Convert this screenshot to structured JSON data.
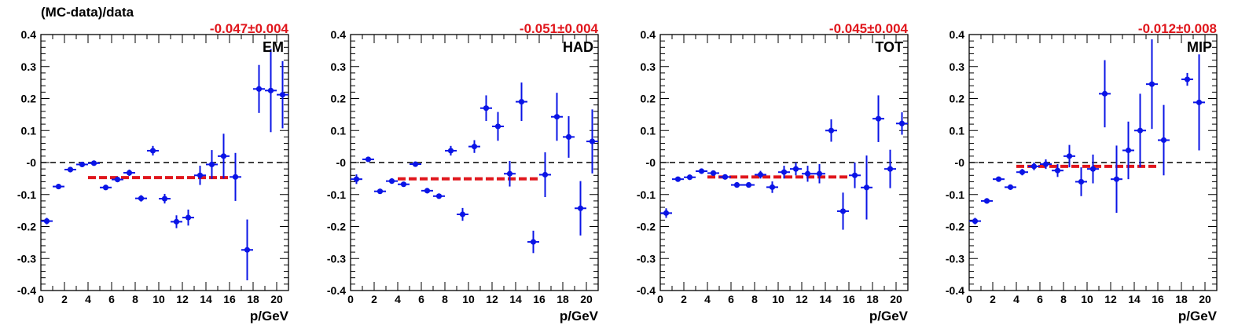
{
  "figure": {
    "ylabel": "(MC-data)/data"
  },
  "colors": {
    "points": "#0a14e6",
    "fit": "#e0161c",
    "fit_text": "#e0161c",
    "zero_line": "#000000"
  },
  "chart_data": [
    {
      "type": "scatter",
      "label": "EM",
      "fit_text": "-0.047±0.004",
      "fit": {
        "value": -0.047,
        "xrange": [
          4,
          16
        ]
      },
      "xlabel": "p/GeV",
      "ylabel": "(MC-data)/data",
      "xlim": [
        0,
        21
      ],
      "ylim": [
        -0.4,
        0.4
      ],
      "xticks": [
        "0",
        "2",
        "4",
        "6",
        "8",
        "10",
        "12",
        "14",
        "16",
        "18",
        "20"
      ],
      "yticks": [
        "-0.4",
        "-0.3",
        "-0.2",
        "-0.1",
        "-0",
        "0.1",
        "0.2",
        "0.3",
        "0.4"
      ],
      "points": [
        {
          "x": 0.5,
          "y": -0.183,
          "err": 0.01
        },
        {
          "x": 1.5,
          "y": -0.075,
          "err": 0.005
        },
        {
          "x": 2.5,
          "y": -0.022,
          "err": 0.005
        },
        {
          "x": 3.5,
          "y": -0.006,
          "err": 0.004
        },
        {
          "x": 4.5,
          "y": -0.002,
          "err": 0.004
        },
        {
          "x": 5.5,
          "y": -0.078,
          "err": 0.006
        },
        {
          "x": 6.5,
          "y": -0.053,
          "err": 0.006
        },
        {
          "x": 7.5,
          "y": -0.032,
          "err": 0.01
        },
        {
          "x": 8.5,
          "y": -0.112,
          "err": 0.01
        },
        {
          "x": 9.5,
          "y": 0.037,
          "err": 0.015
        },
        {
          "x": 10.5,
          "y": -0.113,
          "err": 0.015
        },
        {
          "x": 11.5,
          "y": -0.185,
          "err": 0.02
        },
        {
          "x": 12.5,
          "y": -0.172,
          "err": 0.025
        },
        {
          "x": 13.5,
          "y": -0.04,
          "err": 0.03
        },
        {
          "x": 14.5,
          "y": -0.006,
          "err": 0.045
        },
        {
          "x": 15.5,
          "y": 0.02,
          "err": 0.07
        },
        {
          "x": 16.5,
          "y": -0.045,
          "err": 0.075
        },
        {
          "x": 17.5,
          "y": -0.273,
          "err": 0.095
        },
        {
          "x": 18.5,
          "y": 0.23,
          "err": 0.075
        },
        {
          "x": 19.5,
          "y": 0.225,
          "err": 0.13
        },
        {
          "x": 20.5,
          "y": 0.212,
          "err": 0.105
        }
      ]
    },
    {
      "type": "scatter",
      "label": "HAD",
      "fit_text": "-0.051±0.004",
      "fit": {
        "value": -0.051,
        "xrange": [
          4,
          16
        ]
      },
      "xlabel": "p/GeV",
      "xlim": [
        0,
        21
      ],
      "ylim": [
        -0.4,
        0.4
      ],
      "xticks": [
        "0",
        "2",
        "4",
        "6",
        "8",
        "10",
        "12",
        "14",
        "16",
        "18",
        "20"
      ],
      "yticks": [
        "-0.4",
        "-0.3",
        "-0.2",
        "-0.1",
        "-0",
        "0.1",
        "0.2",
        "0.3",
        "0.4"
      ],
      "points": [
        {
          "x": 0.5,
          "y": -0.052,
          "err": 0.015
        },
        {
          "x": 1.5,
          "y": 0.01,
          "err": 0.006
        },
        {
          "x": 2.5,
          "y": -0.09,
          "err": 0.006
        },
        {
          "x": 3.5,
          "y": -0.058,
          "err": 0.005
        },
        {
          "x": 4.5,
          "y": -0.068,
          "err": 0.005
        },
        {
          "x": 5.5,
          "y": -0.005,
          "err": 0.004
        },
        {
          "x": 6.5,
          "y": -0.088,
          "err": 0.006
        },
        {
          "x": 7.5,
          "y": -0.105,
          "err": 0.008
        },
        {
          "x": 8.5,
          "y": 0.037,
          "err": 0.015
        },
        {
          "x": 9.5,
          "y": -0.162,
          "err": 0.02
        },
        {
          "x": 10.5,
          "y": 0.05,
          "err": 0.02
        },
        {
          "x": 11.5,
          "y": 0.17,
          "err": 0.04
        },
        {
          "x": 12.5,
          "y": 0.113,
          "err": 0.045
        },
        {
          "x": 13.5,
          "y": -0.035,
          "err": 0.04
        },
        {
          "x": 14.5,
          "y": 0.19,
          "err": 0.06
        },
        {
          "x": 15.5,
          "y": -0.248,
          "err": 0.035
        },
        {
          "x": 16.5,
          "y": -0.038,
          "err": 0.07
        },
        {
          "x": 17.5,
          "y": 0.143,
          "err": 0.075
        },
        {
          "x": 18.5,
          "y": 0.08,
          "err": 0.065
        },
        {
          "x": 19.5,
          "y": -0.143,
          "err": 0.085
        },
        {
          "x": 20.5,
          "y": 0.066,
          "err": 0.1
        }
      ]
    },
    {
      "type": "scatter",
      "label": "TOT",
      "fit_text": "-0.045±0.004",
      "fit": {
        "value": -0.045,
        "xrange": [
          4,
          16
        ]
      },
      "xlabel": "p/GeV",
      "xlim": [
        0,
        21
      ],
      "ylim": [
        -0.4,
        0.4
      ],
      "xticks": [
        "0",
        "2",
        "4",
        "6",
        "8",
        "10",
        "12",
        "14",
        "16",
        "18",
        "20"
      ],
      "yticks": [
        "-0.4",
        "-0.3",
        "-0.2",
        "-0.1",
        "-0",
        "0.1",
        "0.2",
        "0.3",
        "0.4"
      ],
      "points": [
        {
          "x": 0.5,
          "y": -0.158,
          "err": 0.015
        },
        {
          "x": 1.5,
          "y": -0.052,
          "err": 0.007
        },
        {
          "x": 2.5,
          "y": -0.046,
          "err": 0.006
        },
        {
          "x": 3.5,
          "y": -0.027,
          "err": 0.005
        },
        {
          "x": 4.5,
          "y": -0.033,
          "err": 0.005
        },
        {
          "x": 5.5,
          "y": -0.045,
          "err": 0.005
        },
        {
          "x": 6.5,
          "y": -0.07,
          "err": 0.006
        },
        {
          "x": 7.5,
          "y": -0.07,
          "err": 0.008
        },
        {
          "x": 8.5,
          "y": -0.038,
          "err": 0.012
        },
        {
          "x": 9.5,
          "y": -0.077,
          "err": 0.018
        },
        {
          "x": 10.5,
          "y": -0.03,
          "err": 0.02
        },
        {
          "x": 11.5,
          "y": -0.02,
          "err": 0.02
        },
        {
          "x": 12.5,
          "y": -0.035,
          "err": 0.025
        },
        {
          "x": 13.5,
          "y": -0.035,
          "err": 0.03
        },
        {
          "x": 14.5,
          "y": 0.1,
          "err": 0.035
        },
        {
          "x": 15.5,
          "y": -0.152,
          "err": 0.058
        },
        {
          "x": 16.5,
          "y": -0.04,
          "err": 0.04
        },
        {
          "x": 17.5,
          "y": -0.078,
          "err": 0.1
        },
        {
          "x": 18.5,
          "y": 0.137,
          "err": 0.073
        },
        {
          "x": 19.5,
          "y": -0.02,
          "err": 0.06
        },
        {
          "x": 20.5,
          "y": 0.122,
          "err": 0.035
        }
      ]
    },
    {
      "type": "scatter",
      "label": "MIP",
      "fit_text": "-0.012±0.008",
      "fit": {
        "value": -0.012,
        "xrange": [
          4,
          16
        ]
      },
      "xlabel": "p/GeV",
      "xlim": [
        0,
        21
      ],
      "ylim": [
        -0.4,
        0.4
      ],
      "xticks": [
        "0",
        "2",
        "4",
        "6",
        "8",
        "10",
        "12",
        "14",
        "16",
        "18",
        "20"
      ],
      "yticks": [
        "-0.4",
        "-0.3",
        "-0.2",
        "-0.1",
        "-0",
        "0.1",
        "0.2",
        "0.3",
        "0.4"
      ],
      "points": [
        {
          "x": 0.5,
          "y": -0.183,
          "err": 0.01
        },
        {
          "x": 1.5,
          "y": -0.12,
          "err": 0.008
        },
        {
          "x": 2.5,
          "y": -0.052,
          "err": 0.008
        },
        {
          "x": 3.5,
          "y": -0.077,
          "err": 0.008
        },
        {
          "x": 4.5,
          "y": -0.03,
          "err": 0.01
        },
        {
          "x": 5.5,
          "y": -0.012,
          "err": 0.012
        },
        {
          "x": 6.5,
          "y": -0.005,
          "err": 0.015
        },
        {
          "x": 7.5,
          "y": -0.025,
          "err": 0.02
        },
        {
          "x": 8.5,
          "y": 0.02,
          "err": 0.035
        },
        {
          "x": 9.5,
          "y": -0.06,
          "err": 0.045
        },
        {
          "x": 10.5,
          "y": -0.02,
          "err": 0.045
        },
        {
          "x": 11.5,
          "y": 0.215,
          "err": 0.105
        },
        {
          "x": 12.5,
          "y": -0.052,
          "err": 0.105
        },
        {
          "x": 13.5,
          "y": 0.038,
          "err": 0.09
        },
        {
          "x": 14.5,
          "y": 0.1,
          "err": 0.115
        },
        {
          "x": 15.5,
          "y": 0.245,
          "err": 0.14
        },
        {
          "x": 16.5,
          "y": 0.07,
          "err": 0.11
        },
        {
          "x": 18.5,
          "y": 0.26,
          "err": 0.02
        },
        {
          "x": 19.5,
          "y": 0.188,
          "err": 0.15
        }
      ]
    }
  ]
}
